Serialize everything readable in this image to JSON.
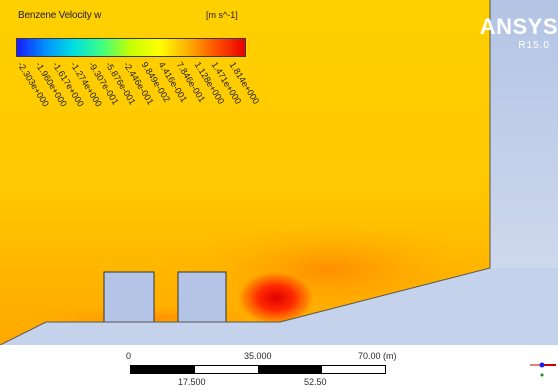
{
  "legend": {
    "title": "Benzene Velocity w",
    "units": "[m s^-1]",
    "tick_labels": [
      "-2.303e+000",
      "-1.960e+000",
      "-1.617e+000",
      "-1.274e+000",
      "-9.307e-001",
      "-5.876e-001",
      "-2.446e-001",
      "9.849e-002",
      "4.416e-001",
      "7.846e-001",
      "1.128e+000",
      "1.471e+000",
      "1.814e+000"
    ],
    "colormap": [
      "#1a1aff",
      "#0090ff",
      "#00e0e0",
      "#40ff80",
      "#c8ff00",
      "#ffff00",
      "#ffb000",
      "#ff5000",
      "#e80000"
    ]
  },
  "logo": {
    "name": "ANSYS",
    "version": "R15.0"
  },
  "scale_bar": {
    "top_labels": [
      "0",
      "35.000",
      "70.00 (m)"
    ],
    "bottom_labels": [
      "17.500",
      "52.50"
    ]
  },
  "colors": {
    "background": "#c6d2ec",
    "fluid_base": "#ffc800",
    "solid": "#b3c4e6",
    "hot": "#e80000"
  }
}
